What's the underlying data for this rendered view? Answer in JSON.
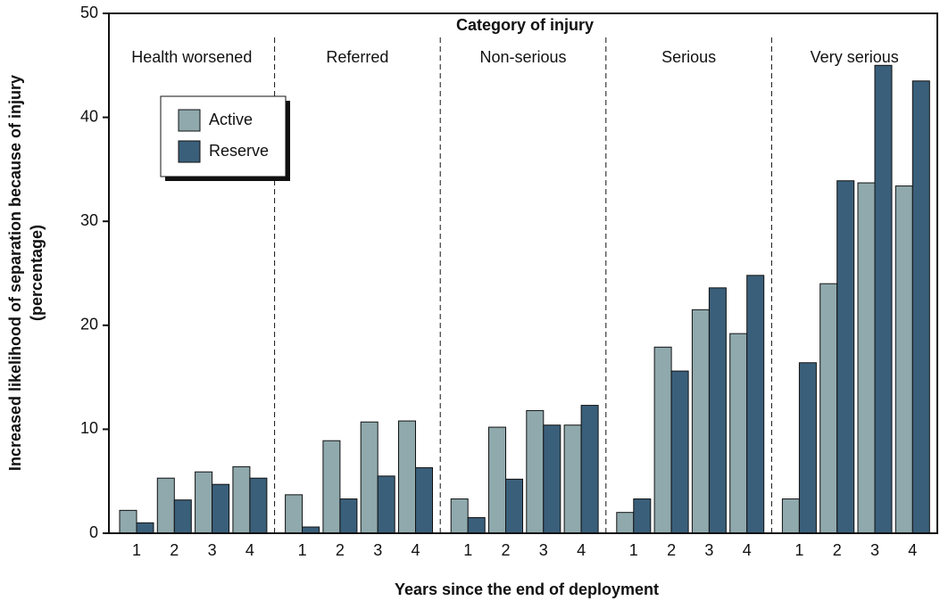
{
  "chart_data": {
    "type": "bar",
    "title": "Category of injury",
    "y_label": [
      "Increased likelihood of separation because of injury",
      "(percentage)"
    ],
    "x_label": "Years since the end of deployment",
    "groups": [
      "Health worsened",
      "Referred",
      "Non-serious",
      "Serious",
      "Very serious"
    ],
    "categories": [
      "1",
      "2",
      "3",
      "4"
    ],
    "series": [
      {
        "name": "Active",
        "color": "#8fa9ad",
        "values": [
          [
            2.2,
            5.3,
            5.9,
            6.4
          ],
          [
            3.7,
            8.9,
            10.7,
            10.8
          ],
          [
            3.3,
            10.2,
            11.8,
            10.4
          ],
          [
            2.0,
            17.9,
            21.5,
            19.2
          ],
          [
            3.3,
            24.0,
            33.7,
            33.4
          ]
        ]
      },
      {
        "name": "Reserve",
        "color": "#3a5f7a",
        "values": [
          [
            1.0,
            3.2,
            4.7,
            5.3
          ],
          [
            0.6,
            3.3,
            5.5,
            6.3
          ],
          [
            1.5,
            5.2,
            10.4,
            12.3
          ],
          [
            3.3,
            15.6,
            23.6,
            24.8
          ],
          [
            16.4,
            33.9,
            45.0,
            43.5
          ]
        ]
      }
    ],
    "ylim": [
      0,
      50
    ],
    "yticks": [
      0,
      10,
      20,
      30,
      40,
      50
    ],
    "grid": false,
    "legend": "upper left"
  }
}
